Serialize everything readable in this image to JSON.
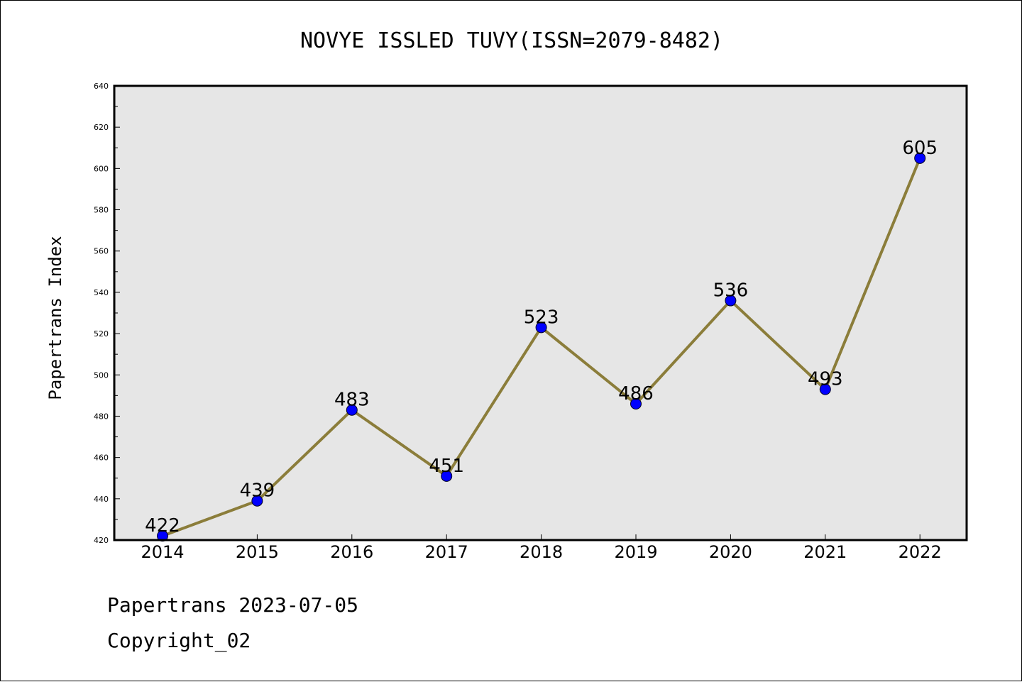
{
  "chart_data": {
    "type": "line",
    "title": "NOVYE ISSLED TUVY(ISSN=2079-8482)",
    "ylabel": "Papertrans Index",
    "xlabel": "",
    "categories": [
      "2014",
      "2015",
      "2016",
      "2017",
      "2018",
      "2019",
      "2020",
      "2021",
      "2022"
    ],
    "series": [
      {
        "values": [
          422,
          439,
          483,
          451,
          523,
          486,
          536,
          493,
          605
        ]
      }
    ],
    "ylim": [
      420,
      640
    ],
    "yticks": [
      420,
      440,
      460,
      480,
      500,
      520,
      540,
      560,
      580,
      600,
      620,
      640
    ],
    "grid": false,
    "data_labels": true,
    "colors": {
      "line": "#8B7D3A",
      "marker": "#0000FF",
      "plot_background": "#E6E6E6",
      "frame": "#000000"
    }
  },
  "footer": {
    "line1": "Papertrans 2023-07-05",
    "line2": "Copyright_02"
  }
}
